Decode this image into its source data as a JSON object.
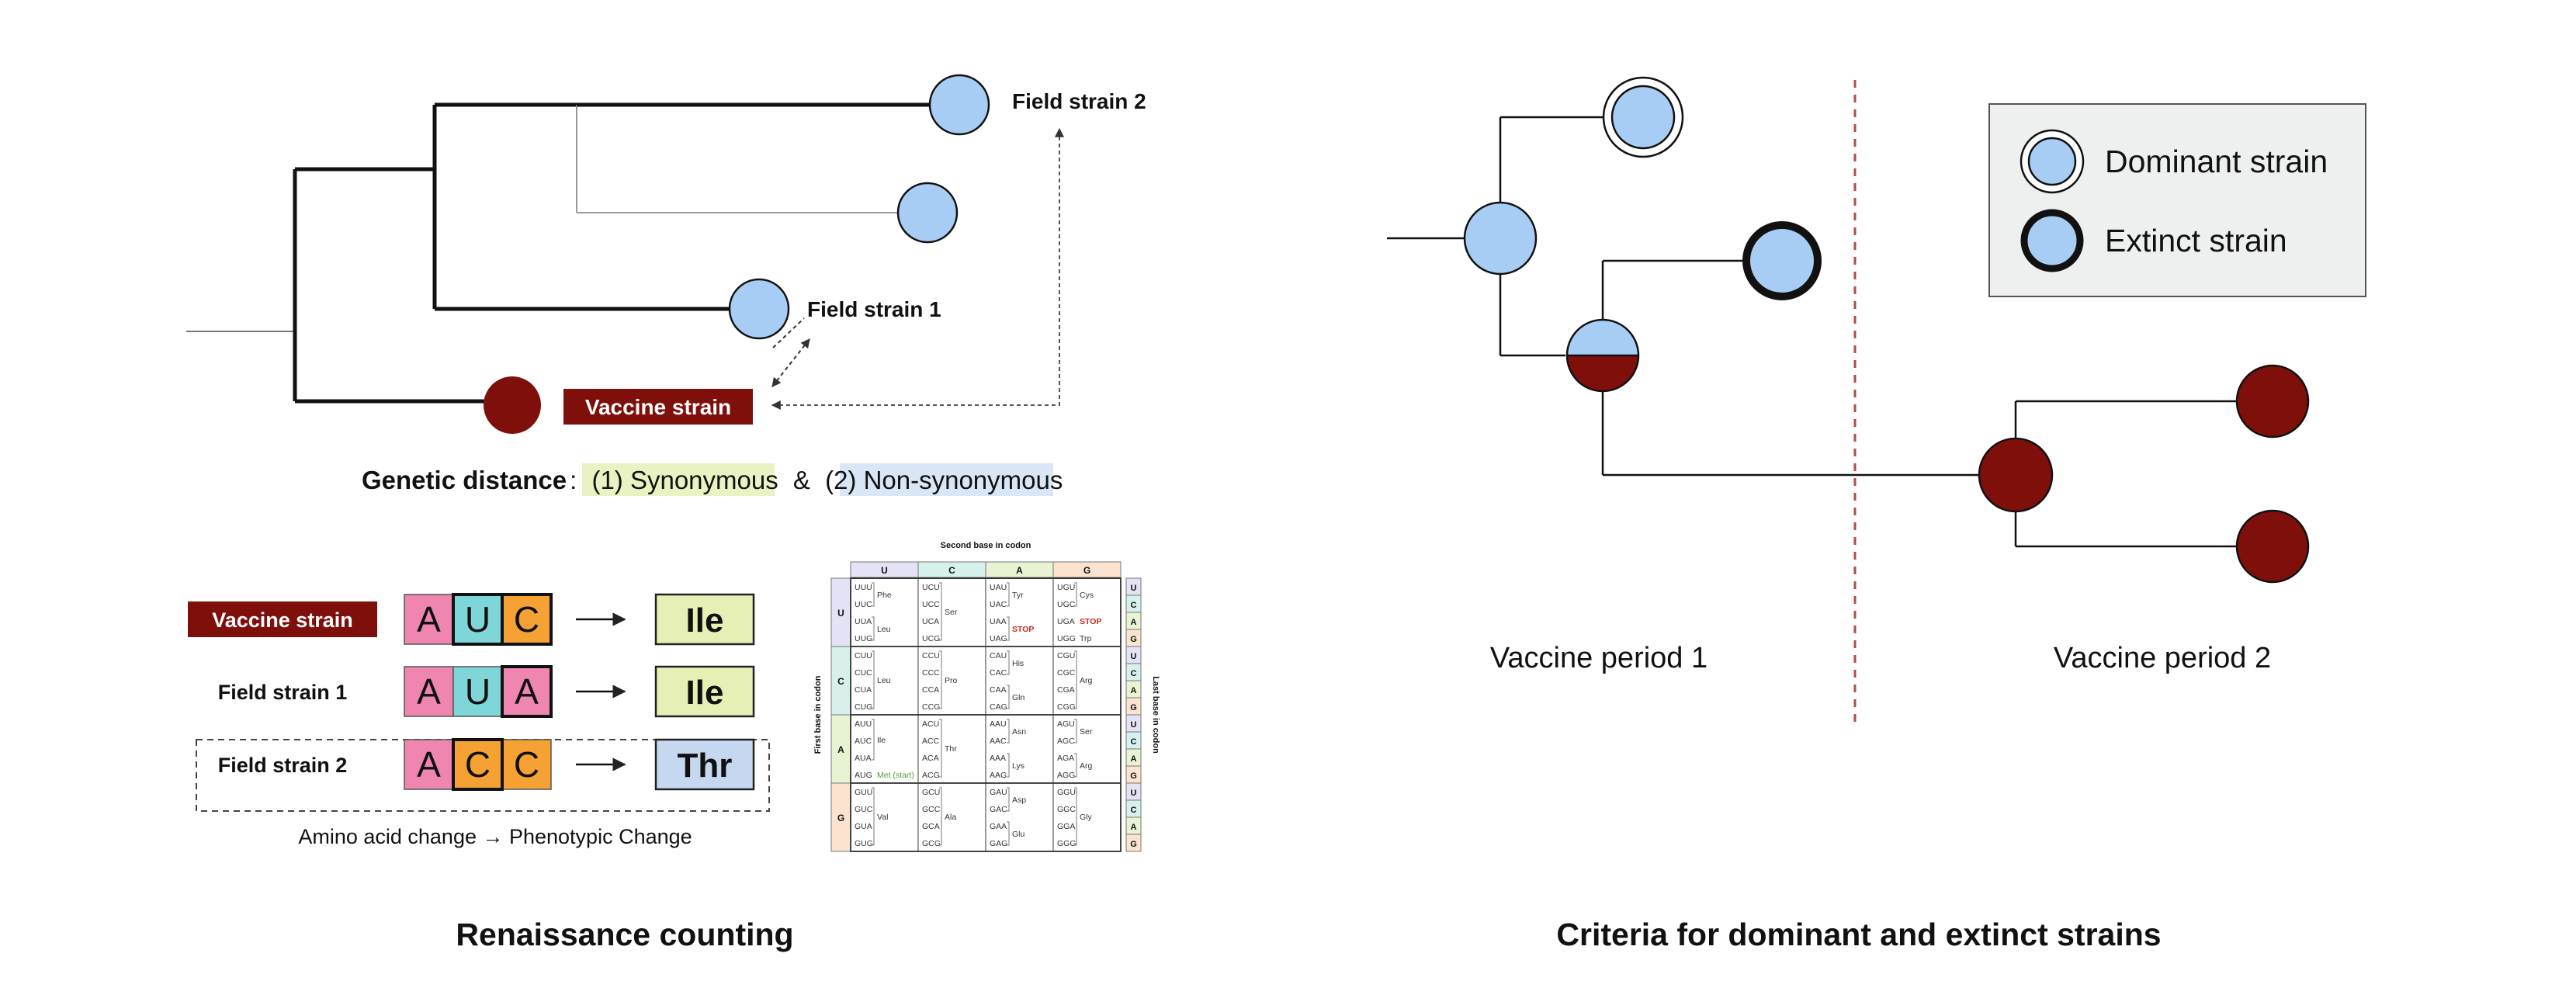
{
  "left": {
    "tree_labels": {
      "field2": "Field strain 2",
      "field1": "Field strain 1",
      "vaccine": "Vaccine strain"
    },
    "genetic_distance": {
      "prefix": "Genetic distance",
      "colon": ":",
      "syn": "(1) Synonymous",
      "amp": "&",
      "non": "(2) Non-synonymous"
    },
    "codon_rows": [
      {
        "label": "Vaccine strain",
        "bases": [
          "A",
          "U",
          "C"
        ],
        "amino": "Ile"
      },
      {
        "label": "Field strain 1",
        "bases": [
          "A",
          "U",
          "A"
        ],
        "amino": "Ile"
      },
      {
        "label": "Field strain 2",
        "bases": [
          "A",
          "C",
          "C"
        ],
        "amino": "Thr"
      }
    ],
    "amino_caption": "Amino acid change → Phenotypic Change",
    "codon_table": {
      "top_title": "Second base in codon",
      "left_title": "First base in codon",
      "right_title": "Last base in codon",
      "col_heads": [
        "U",
        "C",
        "A",
        "G"
      ],
      "row_heads": [
        "U",
        "C",
        "A",
        "G"
      ],
      "last_bases": [
        "U",
        "C",
        "A",
        "G"
      ],
      "cells": [
        [
          {
            "codons": [
              "UUU",
              "UUC",
              "UUA",
              "UUG"
            ],
            "aa": [
              {
                "t": "Phe",
                "r": 0.5
              },
              {
                "t": "Leu",
                "r": 2.5
              }
            ]
          },
          {
            "codons": [
              "UCU",
              "UCC",
              "UCA",
              "UCG"
            ],
            "aa": [
              {
                "t": "Ser",
                "r": 1.5
              }
            ]
          },
          {
            "codons": [
              "UAU",
              "UAC",
              "UAA",
              "UAG"
            ],
            "aa": [
              {
                "t": "Tyr",
                "r": 0.5
              },
              {
                "t": "STOP",
                "r": 2.5,
                "c": "stop"
              }
            ]
          },
          {
            "codons": [
              "UGU",
              "UGC",
              "UGA",
              "UGG"
            ],
            "aa": [
              {
                "t": "Cys",
                "r": 0.5
              },
              {
                "t": "STOP",
                "r": 2,
                "c": "stop"
              },
              {
                "t": "Trp",
                "r": 3
              }
            ]
          }
        ],
        [
          {
            "codons": [
              "CUU",
              "CUC",
              "CUA",
              "CUG"
            ],
            "aa": [
              {
                "t": "Leu",
                "r": 1.5
              }
            ]
          },
          {
            "codons": [
              "CCU",
              "CCC",
              "CCA",
              "CCG"
            ],
            "aa": [
              {
                "t": "Pro",
                "r": 1.5
              }
            ]
          },
          {
            "codons": [
              "CAU",
              "CAC",
              "CAA",
              "CAG"
            ],
            "aa": [
              {
                "t": "His",
                "r": 0.5
              },
              {
                "t": "Gln",
                "r": 2.5
              }
            ]
          },
          {
            "codons": [
              "CGU",
              "CGC",
              "CGA",
              "CGG"
            ],
            "aa": [
              {
                "t": "Arg",
                "r": 1.5
              }
            ]
          }
        ],
        [
          {
            "codons": [
              "AUU",
              "AUC",
              "AUA",
              "AUG"
            ],
            "aa": [
              {
                "t": "Ile",
                "r": 1
              },
              {
                "t": "Met (start)",
                "r": 3,
                "c": "start"
              }
            ]
          },
          {
            "codons": [
              "ACU",
              "ACC",
              "ACA",
              "ACG"
            ],
            "aa": [
              {
                "t": "Thr",
                "r": 1.5
              }
            ]
          },
          {
            "codons": [
              "AAU",
              "AAC",
              "AAA",
              "AAG"
            ],
            "aa": [
              {
                "t": "Asn",
                "r": 0.5
              },
              {
                "t": "Lys",
                "r": 2.5
              }
            ]
          },
          {
            "codons": [
              "AGU",
              "AGC",
              "AGA",
              "AGG"
            ],
            "aa": [
              {
                "t": "Ser",
                "r": 0.5
              },
              {
                "t": "Arg",
                "r": 2.5
              }
            ]
          }
        ],
        [
          {
            "codons": [
              "GUU",
              "GUC",
              "GUA",
              "GUG"
            ],
            "aa": [
              {
                "t": "Val",
                "r": 1.5
              }
            ]
          },
          {
            "codons": [
              "GCU",
              "GCC",
              "GCA",
              "GCG"
            ],
            "aa": [
              {
                "t": "Ala",
                "r": 1.5
              }
            ]
          },
          {
            "codons": [
              "GAU",
              "GAC",
              "GAA",
              "GAG"
            ],
            "aa": [
              {
                "t": "Asp",
                "r": 0.5
              },
              {
                "t": "Glu",
                "r": 2.5
              }
            ]
          },
          {
            "codons": [
              "GGU",
              "GGC",
              "GGA",
              "GGG"
            ],
            "aa": [
              {
                "t": "Gly",
                "r": 1.5
              }
            ]
          }
        ]
      ]
    },
    "title": "Renaissance counting"
  },
  "right": {
    "legend": {
      "dominant": "Dominant strain",
      "extinct": "Extinct strain"
    },
    "period1": "Vaccine period 1",
    "period2": "Vaccine period 2",
    "title": "Criteria for dominant and extinct strains"
  },
  "colors": {
    "strain_blue": "#a7cdf4",
    "vaccine_red": "#7f0f0b",
    "base_A": "#ee86b0",
    "base_U": "#7fd6d8",
    "base_C": "#f5a133",
    "ile": "#e6f0b4",
    "thr": "#c6d8f0",
    "syn_highlight": "#e9f3c2",
    "non_highlight": "#d8e6f5",
    "legend_bg": "#eef0ef",
    "divider": "#b44a43",
    "stop": "#c8281e",
    "start": "#4f9a38"
  }
}
